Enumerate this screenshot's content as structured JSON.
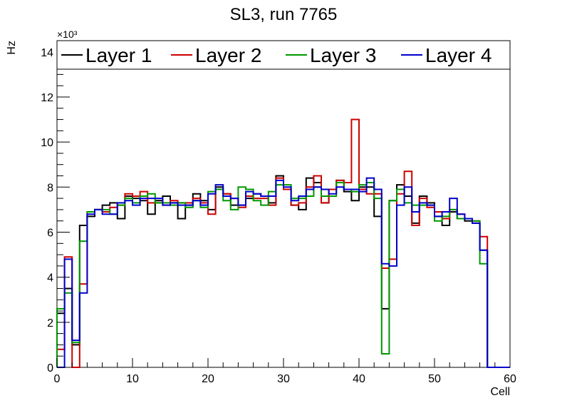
{
  "chart_data": {
    "type": "line",
    "title": "SL3, run 7765",
    "xlabel": "Cell",
    "ylabel": "Hz",
    "y_multiplier_label": "×10³",
    "xlim": [
      0,
      60
    ],
    "ylim": [
      0,
      14.5
    ],
    "x_ticks": [
      0,
      10,
      20,
      30,
      40,
      50,
      60
    ],
    "y_ticks": [
      0,
      2,
      4,
      6,
      8,
      10,
      12,
      14
    ],
    "x_tick_labels": [
      "0",
      "10",
      "20",
      "30",
      "40",
      "50",
      "60"
    ],
    "y_tick_labels": [
      "0",
      "2",
      "4",
      "6",
      "8",
      "10",
      "12",
      "14"
    ],
    "grid": false,
    "legend_position": "top",
    "bins": [
      0,
      1,
      2,
      3,
      4,
      5,
      6,
      7,
      8,
      9,
      10,
      11,
      12,
      13,
      14,
      15,
      16,
      17,
      18,
      19,
      20,
      21,
      22,
      23,
      24,
      25,
      26,
      27,
      28,
      29,
      30,
      31,
      32,
      33,
      34,
      35,
      36,
      37,
      38,
      39,
      40,
      41,
      42,
      43,
      44,
      45,
      46,
      47,
      48,
      49,
      50,
      51,
      52,
      53,
      54,
      55,
      56,
      57,
      58,
      59
    ],
    "series": [
      {
        "name": "Layer 1",
        "color": "#000000",
        "values": [
          2.4,
          3.5,
          1.0,
          6.3,
          6.7,
          7.0,
          7.2,
          7.3,
          6.6,
          7.6,
          7.5,
          7.4,
          6.8,
          7.4,
          7.6,
          7.3,
          6.6,
          7.2,
          7.7,
          7.4,
          7.0,
          8.0,
          7.7,
          7.2,
          7.2,
          7.5,
          7.7,
          7.6,
          7.3,
          8.5,
          7.9,
          7.2,
          7.0,
          8.4,
          8.2,
          7.3,
          7.9,
          8.3,
          7.8,
          7.4,
          8.0,
          8.0,
          6.7,
          2.6,
          7.4,
          8.1,
          7.6,
          6.4,
          7.6,
          7.3,
          6.7,
          6.3,
          6.9,
          6.6,
          6.5,
          6.4,
          5.2,
          0.0,
          0.0,
          0.0
        ]
      },
      {
        "name": "Layer 2",
        "color": "#cc0000",
        "values": [
          0.8,
          4.9,
          0.0,
          3.7,
          6.9,
          7.0,
          6.9,
          7.1,
          7.2,
          7.7,
          7.6,
          7.8,
          7.3,
          7.3,
          7.2,
          7.4,
          7.3,
          7.3,
          7.5,
          7.3,
          6.8,
          7.9,
          7.7,
          7.5,
          7.1,
          7.6,
          7.5,
          7.5,
          7.2,
          8.4,
          7.9,
          7.2,
          7.3,
          8.0,
          8.5,
          7.3,
          7.9,
          8.3,
          8.2,
          11.0,
          7.9,
          7.7,
          7.7,
          4.4,
          4.8,
          7.7,
          8.7,
          6.3,
          7.5,
          7.1,
          6.9,
          6.6,
          7.0,
          6.8,
          6.6,
          6.5,
          5.8,
          0.0,
          0.0,
          0.0
        ]
      },
      {
        "name": "Layer 3",
        "color": "#009900",
        "values": [
          2.6,
          3.3,
          1.1,
          5.6,
          6.9,
          7.0,
          7.0,
          6.8,
          7.2,
          7.5,
          7.3,
          7.6,
          7.7,
          7.3,
          7.3,
          7.2,
          7.3,
          7.1,
          7.4,
          7.1,
          7.8,
          7.9,
          7.4,
          7.0,
          8.0,
          7.9,
          7.4,
          7.2,
          7.8,
          8.1,
          8.1,
          7.5,
          7.5,
          7.6,
          8.0,
          7.6,
          7.6,
          8.2,
          7.9,
          7.8,
          8.1,
          8.2,
          7.5,
          0.6,
          7.4,
          7.9,
          7.3,
          7.2,
          7.2,
          7.2,
          6.5,
          6.7,
          7.0,
          6.6,
          6.6,
          6.5,
          4.6,
          0.0,
          0.0,
          0.0
        ]
      },
      {
        "name": "Layer 4",
        "color": "#0000cc",
        "values": [
          0.0,
          4.8,
          1.2,
          3.3,
          6.8,
          7.0,
          6.8,
          6.8,
          7.3,
          7.4,
          7.2,
          7.5,
          7.5,
          7.5,
          7.2,
          7.3,
          7.2,
          7.2,
          7.4,
          7.2,
          7.7,
          8.1,
          7.6,
          7.5,
          7.2,
          7.8,
          7.7,
          7.6,
          7.6,
          8.3,
          8.0,
          7.4,
          7.6,
          7.9,
          8.0,
          7.9,
          7.7,
          8.0,
          7.9,
          7.9,
          7.8,
          8.4,
          7.9,
          4.6,
          4.5,
          7.2,
          8.0,
          6.9,
          7.3,
          7.2,
          6.7,
          6.9,
          7.5,
          6.8,
          6.6,
          6.4,
          5.2,
          0.0,
          0.0,
          0.0
        ]
      }
    ]
  }
}
